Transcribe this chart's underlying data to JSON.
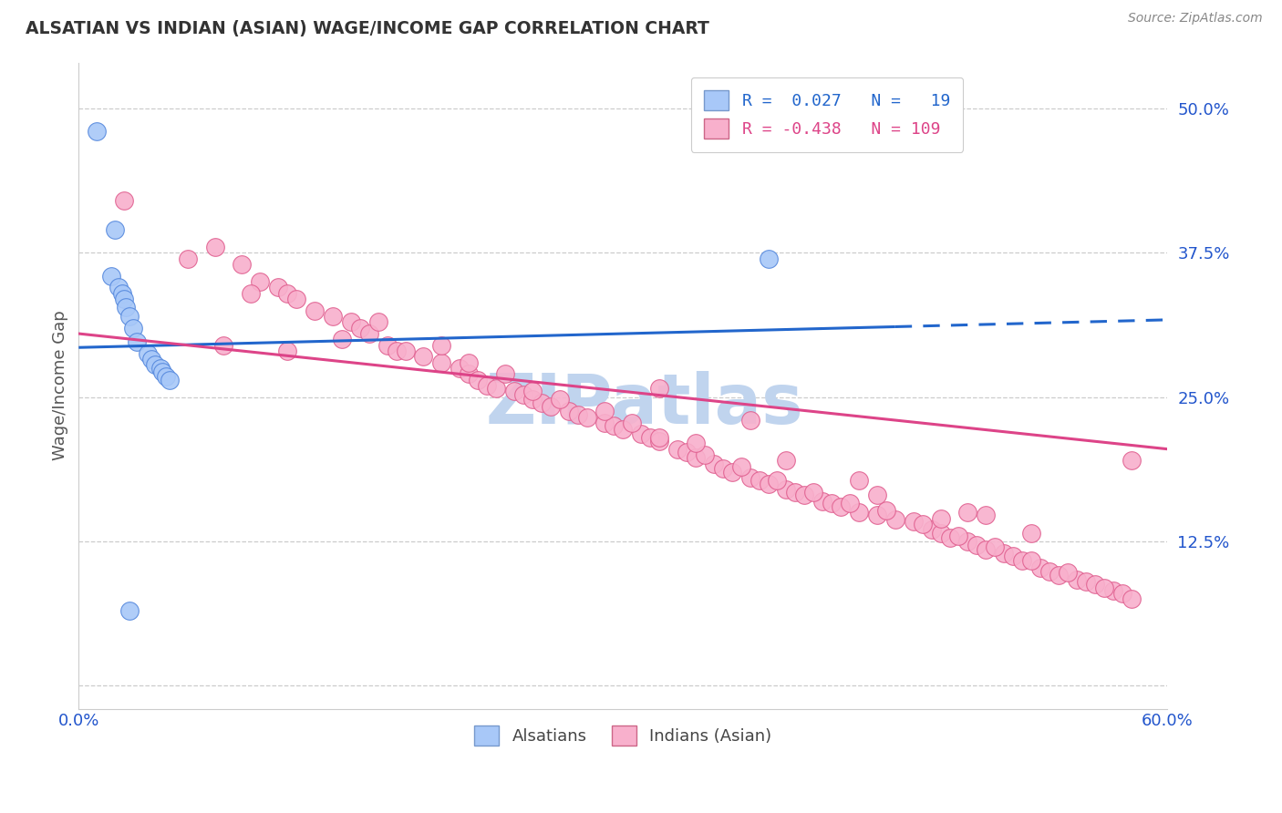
{
  "title": "ALSATIAN VS INDIAN (ASIAN) WAGE/INCOME GAP CORRELATION CHART",
  "source": "Source: ZipAtlas.com",
  "ylabel": "Wage/Income Gap",
  "yticks": [
    0.0,
    0.125,
    0.25,
    0.375,
    0.5
  ],
  "ytick_labels": [
    "",
    "12.5%",
    "25.0%",
    "37.5%",
    "50.0%"
  ],
  "xlim": [
    0.0,
    0.6
  ],
  "ylim": [
    -0.02,
    0.54
  ],
  "alsatian_color": "#a8c8f8",
  "alsatian_edge": "#5588dd",
  "indian_color": "#f8b0cc",
  "indian_edge": "#e06090",
  "blue_line_color": "#2266cc",
  "pink_line_color": "#dd4488",
  "background_color": "#ffffff",
  "grid_color": "#cccccc",
  "watermark_text": "ZIPatlas",
  "watermark_color": "#c0d4ee",
  "alsatian_x": [
    0.01,
    0.02,
    0.018,
    0.022,
    0.024,
    0.025,
    0.026,
    0.028,
    0.03,
    0.032,
    0.038,
    0.04,
    0.042,
    0.045,
    0.046,
    0.048,
    0.05,
    0.38,
    0.028
  ],
  "alsatian_y": [
    0.48,
    0.395,
    0.355,
    0.345,
    0.34,
    0.335,
    0.328,
    0.32,
    0.31,
    0.298,
    0.288,
    0.283,
    0.278,
    0.275,
    0.272,
    0.268,
    0.265,
    0.37,
    0.065
  ],
  "indian_x": [
    0.025,
    0.06,
    0.09,
    0.1,
    0.11,
    0.095,
    0.115,
    0.12,
    0.13,
    0.075,
    0.14,
    0.15,
    0.155,
    0.16,
    0.145,
    0.17,
    0.175,
    0.18,
    0.19,
    0.165,
    0.2,
    0.21,
    0.215,
    0.2,
    0.22,
    0.225,
    0.215,
    0.23,
    0.24,
    0.245,
    0.235,
    0.25,
    0.255,
    0.26,
    0.25,
    0.27,
    0.275,
    0.28,
    0.265,
    0.29,
    0.295,
    0.3,
    0.29,
    0.31,
    0.315,
    0.32,
    0.305,
    0.33,
    0.335,
    0.34,
    0.32,
    0.35,
    0.355,
    0.36,
    0.345,
    0.37,
    0.375,
    0.38,
    0.365,
    0.39,
    0.395,
    0.4,
    0.385,
    0.41,
    0.415,
    0.42,
    0.405,
    0.43,
    0.44,
    0.425,
    0.45,
    0.46,
    0.445,
    0.47,
    0.475,
    0.48,
    0.465,
    0.49,
    0.495,
    0.5,
    0.485,
    0.51,
    0.515,
    0.52,
    0.505,
    0.53,
    0.535,
    0.54,
    0.525,
    0.55,
    0.555,
    0.56,
    0.545,
    0.57,
    0.575,
    0.58,
    0.565,
    0.475,
    0.39,
    0.44,
    0.5,
    0.34,
    0.43,
    0.525,
    0.115,
    0.08,
    0.49,
    0.32,
    0.37,
    0.58
  ],
  "indian_y": [
    0.42,
    0.37,
    0.365,
    0.35,
    0.345,
    0.34,
    0.34,
    0.335,
    0.325,
    0.38,
    0.32,
    0.315,
    0.31,
    0.305,
    0.3,
    0.295,
    0.29,
    0.29,
    0.285,
    0.315,
    0.28,
    0.275,
    0.27,
    0.295,
    0.265,
    0.26,
    0.28,
    0.258,
    0.255,
    0.252,
    0.27,
    0.248,
    0.245,
    0.242,
    0.255,
    0.238,
    0.235,
    0.232,
    0.248,
    0.228,
    0.225,
    0.222,
    0.238,
    0.218,
    0.215,
    0.212,
    0.228,
    0.205,
    0.202,
    0.198,
    0.215,
    0.192,
    0.188,
    0.185,
    0.2,
    0.18,
    0.178,
    0.175,
    0.19,
    0.17,
    0.168,
    0.165,
    0.178,
    0.16,
    0.158,
    0.155,
    0.168,
    0.15,
    0.148,
    0.158,
    0.144,
    0.142,
    0.152,
    0.135,
    0.132,
    0.128,
    0.14,
    0.125,
    0.122,
    0.118,
    0.13,
    0.115,
    0.112,
    0.108,
    0.12,
    0.102,
    0.099,
    0.096,
    0.108,
    0.092,
    0.09,
    0.088,
    0.098,
    0.082,
    0.08,
    0.075,
    0.085,
    0.145,
    0.195,
    0.165,
    0.148,
    0.21,
    0.178,
    0.132,
    0.29,
    0.295,
    0.15,
    0.258,
    0.23,
    0.195
  ],
  "blue_line_x0": 0.0,
  "blue_line_y0": 0.293,
  "blue_line_x1": 0.45,
  "blue_line_y1": 0.311,
  "blue_line_dash_x0": 0.45,
  "blue_line_dash_y0": 0.311,
  "blue_line_dash_x1": 0.6,
  "blue_line_dash_y1": 0.317,
  "pink_line_x0": 0.0,
  "pink_line_y0": 0.305,
  "pink_line_x1": 0.6,
  "pink_line_y1": 0.205
}
